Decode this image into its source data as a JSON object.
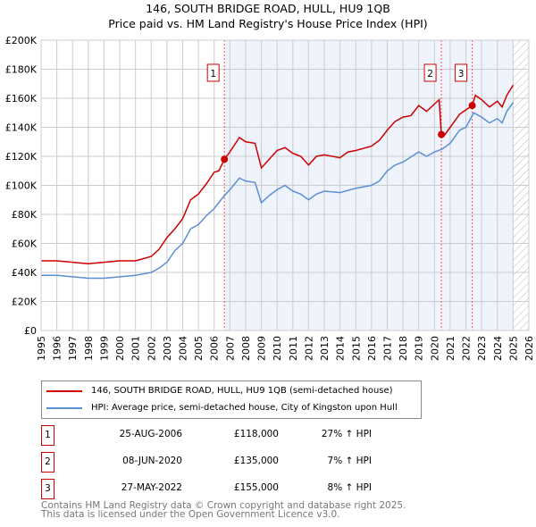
{
  "title": "146, SOUTH BRIDGE ROAD, HULL, HU9 1QB",
  "subtitle": "Price paid vs. HM Land Registry's House Price Index (HPI)",
  "chart_data": {
    "type": "line",
    "xlim": [
      1995,
      2026
    ],
    "ylim": [
      0,
      200000
    ],
    "yticks": [
      0,
      20000,
      40000,
      60000,
      80000,
      100000,
      120000,
      140000,
      160000,
      180000,
      200000
    ],
    "ytick_labels": [
      "£0",
      "£20K",
      "£40K",
      "£60K",
      "£80K",
      "£100K",
      "£120K",
      "£140K",
      "£160K",
      "£180K",
      "£200K"
    ],
    "xticks": [
      1995,
      1996,
      1997,
      1998,
      1999,
      2000,
      2001,
      2002,
      2003,
      2004,
      2005,
      2006,
      2007,
      2008,
      2009,
      2010,
      2011,
      2012,
      2013,
      2014,
      2015,
      2016,
      2017,
      2018,
      2019,
      2020,
      2021,
      2022,
      2023,
      2024,
      2025,
      2026
    ],
    "shaded_range": [
      2006.65,
      2025.0
    ],
    "hatched_from": 2025.0,
    "colors": {
      "property": "#cc0000",
      "hpi": "#5b8fd4"
    },
    "series": [
      {
        "name": "146, SOUTH BRIDGE ROAD, HULL, HU9 1QB (semi-detached house)",
        "x": [
          1995,
          1996,
          1997,
          1998,
          1999,
          2000,
          2001,
          2002,
          2002.5,
          2003,
          2003.5,
          2004,
          2004.5,
          2005,
          2005.5,
          2006,
          2006.3,
          2006.65,
          2007,
          2007.6,
          2008,
          2008.6,
          2009,
          2009.5,
          2010,
          2010.5,
          2011,
          2011.5,
          2012,
          2012.5,
          2013,
          2014,
          2014.5,
          2015,
          2016,
          2016.5,
          2017,
          2017.5,
          2018,
          2018.5,
          2019,
          2019.5,
          2020,
          2020.3,
          2020.44,
          2020.6,
          2021,
          2021.6,
          2022,
          2022.4,
          2022.6,
          2023,
          2023.5,
          2024,
          2024.3,
          2024.6,
          2025
        ],
        "y": [
          48000,
          48000,
          47000,
          46000,
          47000,
          48000,
          48000,
          51000,
          56000,
          64000,
          70000,
          77000,
          90000,
          94000,
          101000,
          109000,
          110000,
          118000,
          123000,
          133000,
          130000,
          129000,
          112000,
          118000,
          124000,
          126000,
          122000,
          120000,
          114000,
          120000,
          121000,
          119000,
          123000,
          124000,
          127000,
          131000,
          138000,
          144000,
          147000,
          148000,
          155000,
          151000,
          156000,
          159000,
          135000,
          134000,
          140000,
          149000,
          152000,
          155000,
          162000,
          159000,
          154000,
          158000,
          154000,
          162000,
          169000
        ]
      },
      {
        "name": "HPI: Average price, semi-detached house, City of Kingston upon Hull",
        "x": [
          1995,
          1996,
          1997,
          1998,
          1999,
          2000,
          2001,
          2002,
          2002.5,
          2003,
          2003.5,
          2004,
          2004.5,
          2005,
          2005.5,
          2006,
          2006.65,
          2007,
          2007.6,
          2008,
          2008.6,
          2009,
          2009.5,
          2010,
          2010.5,
          2011,
          2011.5,
          2012,
          2012.5,
          2013,
          2014,
          2015,
          2016,
          2016.5,
          2017,
          2017.5,
          2018,
          2019,
          2019.5,
          2020,
          2020.5,
          2021,
          2021.6,
          2022,
          2022.5,
          2023,
          2023.5,
          2024,
          2024.3,
          2024.6,
          2025
        ],
        "y": [
          38000,
          38000,
          37000,
          36000,
          36000,
          37000,
          38000,
          40000,
          43000,
          47000,
          55000,
          60000,
          70000,
          73000,
          79000,
          84000,
          93000,
          97000,
          105000,
          103000,
          102000,
          88000,
          93000,
          97000,
          100000,
          96000,
          94000,
          90000,
          94000,
          96000,
          95000,
          98000,
          100000,
          103000,
          110000,
          114000,
          116000,
          123000,
          120000,
          123000,
          125000,
          129000,
          138000,
          140000,
          150000,
          147000,
          143000,
          146000,
          143000,
          151000,
          157000
        ]
      }
    ],
    "sales": [
      {
        "label": "1",
        "x": 2006.65,
        "y": 118000
      },
      {
        "label": "2",
        "x": 2020.44,
        "y": 135000
      },
      {
        "label": "3",
        "x": 2022.4,
        "y": 155000
      }
    ]
  },
  "legend": {
    "property": "146, SOUTH BRIDGE ROAD, HULL, HU9 1QB (semi-detached house)",
    "hpi": "HPI: Average price, semi-detached house, City of Kingston upon Hull"
  },
  "transactions": [
    {
      "num": "1",
      "date": "25-AUG-2006",
      "price": "£118,000",
      "hpi": "27% ↑ HPI"
    },
    {
      "num": "2",
      "date": "08-JUN-2020",
      "price": "£135,000",
      "hpi": "7% ↑ HPI"
    },
    {
      "num": "3",
      "date": "27-MAY-2022",
      "price": "£155,000",
      "hpi": "8% ↑ HPI"
    }
  ],
  "footer": {
    "line1": "Contains HM Land Registry data © Crown copyright and database right 2025.",
    "line2": "This data is licensed under the Open Government Licence v3.0."
  }
}
